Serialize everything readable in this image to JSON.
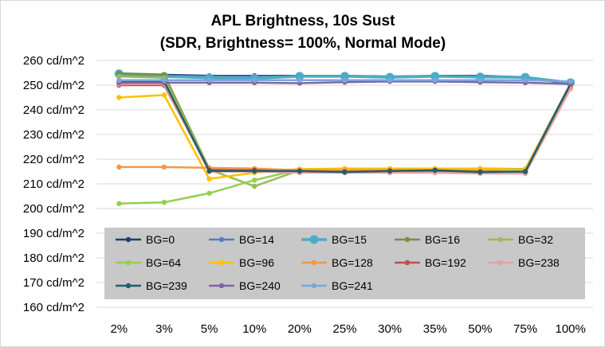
{
  "chart_data": {
    "type": "line",
    "title": "APL Brightness, 10s Sust",
    "subtitle": "(SDR, Brightness= 100%, Normal Mode)",
    "xlabel": "",
    "ylabel": "",
    "categories": [
      "2%",
      "3%",
      "5%",
      "10%",
      "20%",
      "25%",
      "30%",
      "35%",
      "50%",
      "75%",
      "100%"
    ],
    "ylim": [
      160,
      260
    ],
    "yticks": [
      160,
      170,
      180,
      190,
      200,
      210,
      220,
      230,
      240,
      250,
      260
    ],
    "ytick_labels": [
      "160 cd/m^2",
      "170 cd/m^2",
      "180 cd/m^2",
      "190 cd/m^2",
      "200 cd/m^2",
      "210 cd/m^2",
      "220 cd/m^2",
      "230 cd/m^2",
      "240 cd/m^2",
      "250 cd/m^2",
      "260 cd/m^2"
    ],
    "grid": true,
    "legend_position": "bottom-inside",
    "series": [
      {
        "name": "BG=0",
        "color": "#1f3f73",
        "values": [
          254.5,
          254.2,
          253.8,
          253.8,
          253.8,
          253.8,
          253.5,
          253.8,
          253.8,
          253.2,
          250.5
        ]
      },
      {
        "name": "BG=14",
        "color": "#4f7fc0",
        "values": [
          254.2,
          253.8,
          253.5,
          253.5,
          253.5,
          253.5,
          253.5,
          253.5,
          253.5,
          253.0,
          251.0
        ]
      },
      {
        "name": "BG=15",
        "color": "#4bacc6",
        "values": [
          254.6,
          253.5,
          253.0,
          252.8,
          253.6,
          253.6,
          253.2,
          253.6,
          253.3,
          253.2,
          251.0
        ]
      },
      {
        "name": "BG=16",
        "color": "#76923c",
        "values": [
          254.8,
          254.3,
          216.0,
          215.5,
          215.8,
          215.8,
          215.8,
          216.0,
          216.2,
          216.0,
          250.5
        ]
      },
      {
        "name": "BG=32",
        "color": "#9bbb59",
        "values": [
          253.5,
          253.0,
          215.8,
          209.0,
          215.5,
          215.5,
          215.5,
          215.8,
          215.8,
          215.8,
          250.0
        ]
      },
      {
        "name": "BG=64",
        "color": "#92d050",
        "values": [
          202.0,
          202.5,
          206.2,
          211.5,
          215.8,
          216.0,
          216.0,
          216.0,
          216.0,
          216.0,
          250.0
        ]
      },
      {
        "name": "BG=96",
        "color": "#ffc000",
        "values": [
          245.0,
          246.0,
          212.0,
          214.5,
          216.0,
          216.2,
          216.2,
          216.2,
          216.2,
          215.8,
          250.0
        ]
      },
      {
        "name": "BG=128",
        "color": "#f79646",
        "values": [
          216.8,
          216.8,
          216.5,
          216.2,
          215.5,
          215.5,
          215.5,
          215.5,
          215.2,
          214.8,
          249.0
        ]
      },
      {
        "name": "BG=192",
        "color": "#c0504d",
        "values": [
          250.0,
          250.0,
          215.5,
          215.5,
          215.0,
          214.8,
          215.0,
          215.0,
          214.8,
          214.5,
          249.0
        ]
      },
      {
        "name": "BG=238",
        "color": "#e6a19e",
        "values": [
          250.5,
          250.5,
          215.0,
          215.0,
          214.5,
          214.5,
          214.5,
          214.5,
          214.2,
          214.2,
          248.5
        ]
      },
      {
        "name": "BG=239",
        "color": "#215d6e",
        "values": [
          251.5,
          251.5,
          215.2,
          215.2,
          215.2,
          214.8,
          215.2,
          215.5,
          214.8,
          215.0,
          250.5
        ]
      },
      {
        "name": "BG=240",
        "color": "#8064a2",
        "values": [
          251.0,
          251.0,
          251.0,
          251.0,
          250.8,
          251.2,
          251.5,
          251.5,
          251.2,
          251.0,
          250.5
        ]
      },
      {
        "name": "BG=241",
        "color": "#7aa6dc",
        "values": [
          252.0,
          252.0,
          252.0,
          252.0,
          252.0,
          252.0,
          252.0,
          252.0,
          252.0,
          252.0,
          251.5
        ]
      }
    ]
  }
}
